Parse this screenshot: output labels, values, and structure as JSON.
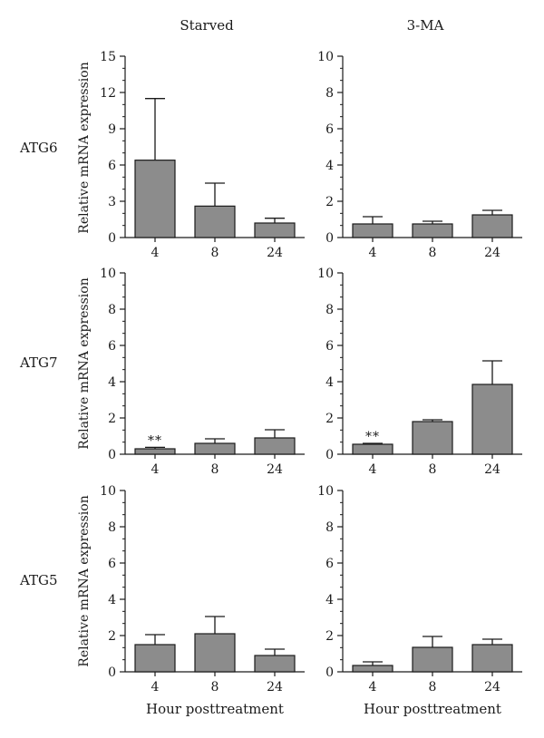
{
  "figure": {
    "column_titles": [
      "Starved",
      "3-MA"
    ],
    "row_labels": [
      "ATG6",
      "ATG7",
      "ATG5"
    ],
    "ylabel": "Relative mRNA expression",
    "xlabel": "Hour posttreatment"
  },
  "chart_data": [
    {
      "type": "bar",
      "gene": "ATG6",
      "condition": "Starved",
      "categories": [
        "4",
        "8",
        "24"
      ],
      "values": [
        6.4,
        2.6,
        1.2
      ],
      "errors": [
        5.1,
        1.9,
        0.4
      ],
      "ylim": [
        0,
        15
      ],
      "yticks": [
        0,
        3,
        6,
        9,
        12,
        15
      ],
      "annotations": [
        "",
        "",
        ""
      ]
    },
    {
      "type": "bar",
      "gene": "ATG6",
      "condition": "3-MA",
      "categories": [
        "4",
        "8",
        "24"
      ],
      "values": [
        0.75,
        0.75,
        1.25
      ],
      "errors": [
        0.4,
        0.15,
        0.25
      ],
      "ylim": [
        0,
        10
      ],
      "yticks": [
        0,
        2,
        4,
        6,
        8,
        10
      ],
      "annotations": [
        "",
        "",
        ""
      ]
    },
    {
      "type": "bar",
      "gene": "ATG7",
      "condition": "Starved",
      "categories": [
        "4",
        "8",
        "24"
      ],
      "values": [
        0.3,
        0.6,
        0.9
      ],
      "errors": [
        0.08,
        0.25,
        0.45
      ],
      "ylim": [
        0,
        10
      ],
      "yticks": [
        0,
        2,
        4,
        6,
        8,
        10
      ],
      "annotations": [
        "**",
        "",
        ""
      ]
    },
    {
      "type": "bar",
      "gene": "ATG7",
      "condition": "3-MA",
      "categories": [
        "4",
        "8",
        "24"
      ],
      "values": [
        0.55,
        1.8,
        3.85
      ],
      "errors": [
        0.05,
        0.1,
        1.3
      ],
      "ylim": [
        0,
        10
      ],
      "yticks": [
        0,
        2,
        4,
        6,
        8,
        10
      ],
      "annotations": [
        "**",
        "",
        ""
      ]
    },
    {
      "type": "bar",
      "gene": "ATG5",
      "condition": "Starved",
      "categories": [
        "4",
        "8",
        "24"
      ],
      "values": [
        1.5,
        2.1,
        0.9
      ],
      "errors": [
        0.55,
        0.95,
        0.35
      ],
      "ylim": [
        0,
        10
      ],
      "yticks": [
        0,
        2,
        4,
        6,
        8,
        10
      ],
      "annotations": [
        "",
        "",
        ""
      ]
    },
    {
      "type": "bar",
      "gene": "ATG5",
      "condition": "3-MA",
      "categories": [
        "4",
        "8",
        "24"
      ],
      "values": [
        0.35,
        1.35,
        1.5
      ],
      "errors": [
        0.2,
        0.6,
        0.3
      ],
      "ylim": [
        0,
        10
      ],
      "yticks": [
        0,
        2,
        4,
        6,
        8,
        10
      ],
      "annotations": [
        "",
        "",
        ""
      ]
    }
  ]
}
